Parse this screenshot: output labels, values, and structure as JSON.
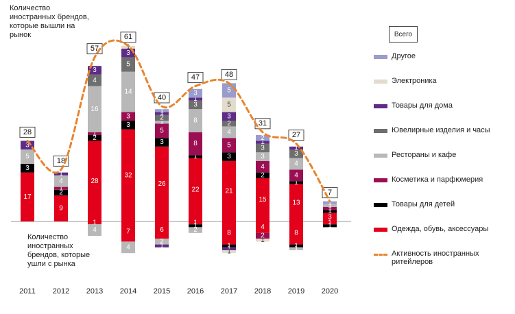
{
  "notes": {
    "entered": "Количество иностранных брендов, которые вышли на рынок",
    "exited": "Количество иностранных брендов, которые ушли с рынка"
  },
  "legend": {
    "total_label": "Всего",
    "activity_label": "Активность иностранных ритейлеров"
  },
  "colors": {
    "clothing": "#e2001a",
    "children": "#000000",
    "cosmetics": "#9b0f52",
    "restaurants": "#b8b8b8",
    "jewelry": "#6e6e6e",
    "home": "#5e2c86",
    "electronics": "#e3dccd",
    "other": "#9a9ccc",
    "activity": "#e8842c"
  },
  "chart_data": {
    "type": "bar",
    "categories": [
      "2011",
      "2012",
      "2013",
      "2014",
      "2015",
      "2016",
      "2017",
      "2018",
      "2019",
      "2020"
    ],
    "totals": [
      28,
      18,
      57,
      61,
      40,
      47,
      48,
      31,
      27,
      7
    ],
    "series": [
      {
        "key": "other",
        "name": "Другое",
        "entered": [
          0,
          0,
          0,
          0,
          1,
          3,
          5,
          2,
          0,
          1
        ],
        "exited": [
          0,
          0,
          0,
          0,
          0,
          0,
          0,
          0,
          0,
          0
        ]
      },
      {
        "key": "electronics",
        "name": "Электроника",
        "entered": [
          0,
          0,
          0,
          1,
          0,
          0,
          5,
          0,
          0,
          0
        ],
        "exited": [
          0,
          0,
          0,
          0,
          0,
          0,
          1,
          1,
          0,
          0
        ]
      },
      {
        "key": "home",
        "name": "Товары для дома",
        "entered": [
          3,
          1,
          3,
          3,
          1,
          1,
          3,
          1,
          1,
          0
        ],
        "exited": [
          0,
          0,
          0,
          0,
          1,
          0,
          1,
          0,
          0,
          0
        ]
      },
      {
        "key": "jewelry",
        "name": "Ювелирные изделия и часы",
        "entered": [
          0,
          0,
          4,
          5,
          2,
          3,
          2,
          3,
          3,
          0
        ],
        "exited": [
          0,
          0,
          0,
          0,
          0,
          0,
          0,
          0,
          0,
          0
        ]
      },
      {
        "key": "restaurants",
        "name": "Рестораны и кафе",
        "entered": [
          5,
          4,
          16,
          14,
          1,
          8,
          4,
          3,
          4,
          1
        ],
        "exited": [
          0,
          0,
          4,
          4,
          2,
          2,
          0,
          0,
          1,
          0
        ]
      },
      {
        "key": "cosmetics",
        "name": "Косметика и парфюмерия",
        "entered": [
          0,
          1,
          1,
          3,
          5,
          8,
          5,
          4,
          4,
          1
        ],
        "exited": [
          0,
          0,
          0,
          0,
          0,
          0,
          0,
          2,
          0,
          0
        ]
      },
      {
        "key": "children",
        "name": "Товары для детей",
        "entered": [
          3,
          2,
          2,
          3,
          3,
          1,
          3,
          2,
          1,
          1
        ],
        "exited": [
          0,
          0,
          0,
          0,
          0,
          1,
          1,
          0,
          1,
          1
        ]
      },
      {
        "key": "clothing",
        "name": "Одежда, обувь, аксессуары",
        "entered": [
          17,
          9,
          28,
          32,
          26,
          22,
          21,
          15,
          13,
          3
        ],
        "exited": [
          0,
          0,
          1,
          7,
          6,
          1,
          8,
          4,
          8,
          1
        ]
      }
    ],
    "activity_line": [
      28,
      18,
      57,
      61,
      40,
      47,
      48,
      31,
      27,
      7
    ],
    "legend_position": "right",
    "grid": false
  }
}
